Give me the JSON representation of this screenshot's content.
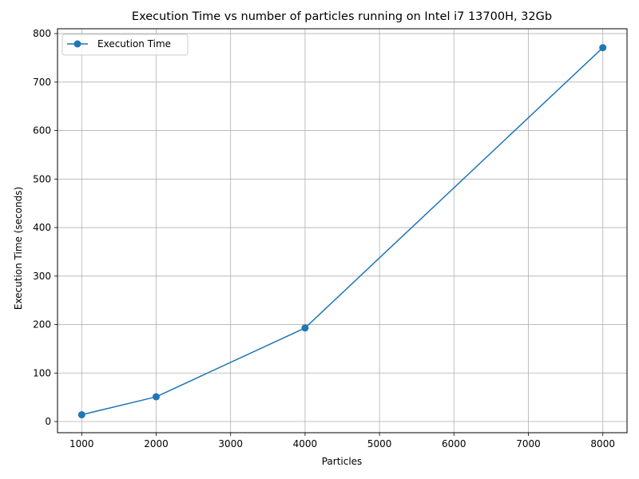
{
  "chart_data": {
    "type": "line",
    "title": "Execution Time vs number of particles running on Intel i7 13700H, 32Gb",
    "xlabel": "Particles",
    "ylabel": "Execution Time (seconds)",
    "xlim": [
      675,
      8325
    ],
    "ylim": [
      -23,
      810
    ],
    "xticks": [
      1000,
      2000,
      3000,
      4000,
      5000,
      6000,
      7000,
      8000
    ],
    "yticks": [
      0,
      100,
      200,
      300,
      400,
      500,
      600,
      700,
      800
    ],
    "grid": true,
    "legend_position": "top-left",
    "series": [
      {
        "name": "Execution Time",
        "color": "#1f77b4",
        "marker": "circle",
        "x": [
          1000,
          2000,
          4000,
          8000
        ],
        "y": [
          14,
          51,
          193,
          771
        ]
      }
    ]
  }
}
